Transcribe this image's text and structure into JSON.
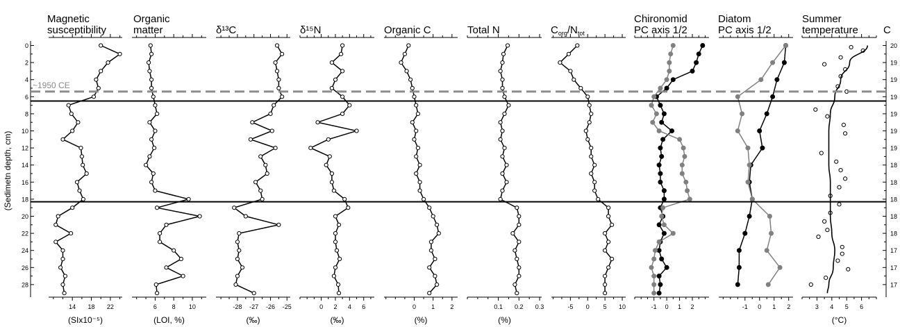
{
  "chart_data": {
    "type": "line",
    "y_axis": {
      "label": "(Sedimetn depth, cm)",
      "ylim": [
        0,
        29.5
      ],
      "ticks": [
        0,
        2,
        4,
        6,
        8,
        10,
        12,
        14,
        16,
        18,
        20,
        22,
        24,
        26,
        28
      ],
      "reversed": true
    },
    "right_axis": {
      "title": "C",
      "labels": [
        "20",
        "19",
        "19",
        "19",
        "19",
        "19",
        "19",
        "18",
        "18",
        "18",
        "18",
        "18",
        "17",
        "17",
        "17"
      ]
    },
    "reference_lines": [
      {
        "depth": 5.4,
        "label": "~1950 CE",
        "style": "dashed",
        "color": "#8c8c8c"
      },
      {
        "depth": 6.5,
        "label": "",
        "style": "solid",
        "color": "#000000"
      },
      {
        "depth": 18.3,
        "label": "",
        "style": "solid",
        "color": "#000000"
      }
    ],
    "panels": [
      {
        "title": [
          "Magnetic",
          "susceptibility"
        ],
        "unit": "(SIx10⁻⁵)",
        "xlim": [
          9,
          24.5
        ],
        "ticks": [
          14,
          18,
          22
        ],
        "tick_labels": [
          "14",
          "18",
          "22"
        ],
        "series": [
          {
            "style": "line-open",
            "color": "#000000",
            "depth": [
              0,
              1,
              2,
              3,
              4,
              5,
              6,
              7,
              8,
              9,
              10,
              11,
              12,
              13,
              14,
              15,
              16,
              17,
              18,
              19,
              20,
              21,
              22,
              23,
              24,
              25,
              26,
              27,
              28,
              29
            ],
            "values": [
              20,
              24,
              21.5,
              20,
              19,
              19.5,
              18.5,
              13.2,
              13.8,
              15.2,
              14,
              12,
              15.8,
              16,
              16.2,
              17,
              15,
              15.5,
              16.3,
              14,
              11,
              10.5,
              13.7,
              10.5,
              12,
              12,
              11.5,
              12.5,
              12,
              12.3
            ]
          }
        ]
      },
      {
        "title": [
          "Organic",
          "matter"
        ],
        "unit": "(LOI, %)",
        "xlim": [
          3.5,
          11.5
        ],
        "ticks": [
          6,
          8,
          10
        ],
        "tick_labels": [
          "6",
          "8",
          "10"
        ],
        "series": [
          {
            "style": "line-open",
            "color": "#000000",
            "depth": [
              0,
              1,
              2,
              3,
              4,
              5,
              6,
              7,
              8,
              9,
              10,
              11,
              12,
              13,
              14,
              15,
              16,
              17,
              18,
              19,
              20,
              21,
              22,
              23,
              24,
              25,
              26,
              27,
              28,
              29
            ],
            "values": [
              5.5,
              5.6,
              5.3,
              5.4,
              5.6,
              5.6,
              5.8,
              6,
              6.2,
              5.4,
              6,
              5.6,
              5.9,
              5.4,
              5,
              5.8,
              5.6,
              6,
              9.6,
              6.2,
              10.8,
              7.2,
              6.5,
              6.5,
              8,
              8.8,
              7.2,
              9,
              6.1,
              6.2
            ]
          }
        ]
      },
      {
        "title": [
          "δ¹³C",
          ""
        ],
        "unit": "(‰)",
        "xlim": [
          -29.3,
          -24.8
        ],
        "ticks": [
          -28,
          -27,
          -26,
          -25
        ],
        "tick_labels": [
          "-28",
          "-27",
          "-26",
          "-25"
        ],
        "series": [
          {
            "style": "line-open",
            "color": "#000000",
            "depth": [
              0,
              1,
              2,
              3,
              4,
              5,
              6,
              7,
              8,
              9,
              10,
              11,
              12,
              13,
              14,
              15,
              16,
              17,
              18,
              19,
              20,
              21,
              22,
              23,
              24,
              25,
              26,
              27,
              28,
              29
            ],
            "values": [
              -25.6,
              -25.3,
              -25.7,
              -25.6,
              -25.5,
              -25.5,
              -25.3,
              -25.8,
              -26.0,
              -27.1,
              -25.9,
              -27.2,
              -25.7,
              -26.6,
              -26.3,
              -26.2,
              -26.9,
              -26.6,
              -26.5,
              -28.2,
              -27.5,
              -25.5,
              -27.9,
              -28.0,
              -27.9,
              -28.0,
              -27.7,
              -28.0,
              -28.1,
              -27.0
            ]
          }
        ]
      },
      {
        "title": [
          "δ¹⁵N",
          ""
        ],
        "unit": "(‰)",
        "xlim": [
          -3,
          7.5
        ],
        "ticks": [
          0,
          2,
          4,
          6
        ],
        "tick_labels": [
          "0",
          "2",
          "4",
          "6"
        ],
        "series": [
          {
            "style": "line-open",
            "color": "#000000",
            "depth": [
              0,
              1,
              2,
              3,
              4,
              5,
              6,
              7,
              8,
              9,
              10,
              11,
              12,
              13,
              14,
              15,
              16,
              17,
              18,
              19,
              20,
              21,
              22,
              23,
              24,
              25,
              26,
              27,
              28,
              29
            ],
            "values": [
              3,
              2.8,
              1.5,
              3,
              2,
              1.5,
              3,
              4,
              3,
              -0.5,
              5,
              1,
              -1.5,
              1.2,
              0.7,
              1.5,
              1.5,
              1.8,
              3.3,
              3.8,
              2,
              2.5,
              2,
              2,
              2.2,
              2.6,
              2,
              1.8,
              2.4,
              2.5
            ]
          }
        ]
      },
      {
        "title": [
          "Organic C",
          ""
        ],
        "unit": "(%)",
        "xlim": [
          -1.6,
          2.3
        ],
        "ticks": [
          0,
          1,
          2
        ],
        "tick_labels": [
          "0",
          "1",
          "2"
        ],
        "series": [
          {
            "style": "line-open",
            "color": "#000000",
            "depth": [
              0,
              1,
              2,
              3,
              4,
              5,
              6,
              7,
              8,
              9,
              10,
              11,
              12,
              13,
              14,
              15,
              16,
              17,
              18,
              19,
              20,
              21,
              22,
              23,
              24,
              25,
              26,
              27,
              28,
              29
            ],
            "values": [
              -0.3,
              -0.5,
              -0.7,
              -0.4,
              -0.2,
              -0.1,
              0,
              0.1,
              0.2,
              -0.1,
              0.1,
              0.0,
              0.2,
              0.1,
              0.3,
              0.1,
              0.3,
              0.3,
              0.5,
              0.8,
              1.0,
              1.2,
              1.3,
              0.9,
              0.9,
              1.1,
              0.8,
              1.1,
              1.2,
              0.8
            ]
          }
        ]
      },
      {
        "title": [
          "Total N",
          ""
        ],
        "unit": "(%)",
        "xlim": [
          -0.05,
          0.31
        ],
        "ticks": [
          0.1,
          0.2,
          0.3
        ],
        "tick_labels": [
          "0.1",
          "0.2",
          "0.3"
        ],
        "series": [
          {
            "style": "line-open",
            "color": "#000000",
            "depth": [
              0,
              1,
              2,
              3,
              4,
              5,
              6,
              7,
              8,
              9,
              10,
              11,
              12,
              13,
              14,
              15,
              16,
              17,
              18,
              19,
              20,
              21,
              22,
              23,
              24,
              25,
              26,
              27,
              28,
              29
            ],
            "values": [
              0.145,
              0.125,
              0.12,
              0.11,
              0.12,
              0.12,
              0.13,
              0.15,
              0.13,
              0.11,
              0.12,
              0.11,
              0.13,
              0.12,
              0.14,
              0.12,
              0.14,
              0.12,
              0.11,
              0.19,
              0.2,
              0.2,
              0.17,
              0.2,
              0.18,
              0.19,
              0.2,
              0.2,
              0.18,
              0.19
            ]
          }
        ]
      },
      {
        "title": [
          "C",
          ""
        ],
        "title_html": "C<tspan font-size='9' dy='3'>org</tspan><tspan dy='-3'>/N</tspan><tspan font-size='9' dy='3'>tot</tspan>",
        "unit": "",
        "xlim": [
          -10.5,
          11
        ],
        "ticks": [
          -5,
          0,
          5,
          10
        ],
        "tick_labels": [
          "-5",
          "0",
          "5",
          "10"
        ],
        "series": [
          {
            "style": "line-open",
            "color": "#000000",
            "depth": [
              0,
              1,
              2,
              3,
              4,
              5,
              6,
              7,
              8,
              9,
              10,
              11,
              12,
              13,
              14,
              15,
              16,
              17,
              18,
              19,
              20,
              21,
              22,
              23,
              24,
              25,
              26,
              27,
              28,
              29
            ],
            "values": [
              -3,
              -5.5,
              -8,
              -5,
              -4,
              -2,
              0,
              0.5,
              1,
              0.5,
              -0.5,
              0,
              1,
              1,
              2,
              1,
              2,
              2,
              3,
              6,
              6,
              7,
              5,
              6,
              5,
              7,
              6,
              5,
              5,
              5
            ]
          }
        ]
      },
      {
        "title": [
          "Chironomid",
          "PC axis 1/2"
        ],
        "unit": "",
        "xlim": [
          -2.5,
          3.3
        ],
        "ticks": [
          -1,
          0,
          1,
          2
        ],
        "tick_labels": [
          "-1",
          "0",
          "1",
          "2"
        ],
        "series": [
          {
            "style": "line-filled",
            "color": "#000000",
            "depth": [
              0,
              1,
              2,
              3,
              4,
              5,
              6,
              7,
              8,
              9,
              10,
              11,
              12,
              13,
              14,
              15,
              16,
              17,
              18,
              19,
              20,
              21,
              22,
              23,
              24,
              25,
              26,
              27,
              28,
              29
            ],
            "values": [
              2.8,
              2.5,
              2.3,
              2,
              0.5,
              0,
              -0.8,
              -0.5,
              -0.2,
              -0.4,
              0.4,
              -0.3,
              -0.5,
              -0.4,
              -0.6,
              -0.5,
              -0.5,
              -0.2,
              -0.2,
              -0.5,
              -0.3,
              -0.6,
              -0.2,
              -0.5,
              -0.6,
              -0.4,
              0,
              -0.6,
              -0.5,
              -0.6
            ]
          },
          {
            "style": "line-filled",
            "color": "#808080",
            "depth": [
              0,
              1,
              2,
              3,
              4,
              5,
              6,
              7,
              8,
              9,
              10,
              11,
              12,
              13,
              14,
              15,
              16,
              17,
              18,
              19,
              20,
              21,
              22,
              23,
              24,
              25,
              26,
              27,
              28,
              29
            ],
            "values": [
              0.5,
              0.3,
              0.2,
              0.2,
              0,
              -0.5,
              -1,
              -1.2,
              -0.8,
              -1.1,
              -0.6,
              1,
              1.3,
              1.4,
              1.2,
              1.2,
              1.5,
              1.6,
              1.8,
              -0.3,
              -0.4,
              -0.2,
              0.5,
              -0.6,
              -0.9,
              -1,
              -1.2,
              -1,
              -1,
              -1
            ]
          }
        ]
      },
      {
        "title": [
          "Diatom",
          "PC axis 1/2"
        ],
        "unit": "",
        "xlim": [
          -2.8,
          2.3
        ],
        "ticks": [
          -1,
          0,
          1,
          2
        ],
        "tick_labels": [
          "-1",
          "0",
          "1",
          "2"
        ],
        "series": [
          {
            "style": "line-filled",
            "color": "#000000",
            "depth": [
              0,
              2,
              4,
              6,
              8,
              10,
              12,
              14,
              16,
              18,
              20,
              22,
              24,
              26,
              28
            ],
            "values": [
              1.8,
              1.7,
              1.2,
              0.9,
              0.5,
              0,
              0.2,
              -0.6,
              -0.7,
              -0.5,
              -0.7,
              -1,
              -1.4,
              -1.4,
              -1.5
            ]
          },
          {
            "style": "line-filled",
            "color": "#808080",
            "depth": [
              0,
              2,
              4,
              6,
              8,
              10,
              12,
              14,
              16,
              18,
              20,
              22,
              24,
              26,
              28
            ],
            "values": [
              1.8,
              0.9,
              0.1,
              -1.5,
              -1.2,
              -1.5,
              -0.8,
              -0.7,
              -0.8,
              -0.5,
              0.7,
              0.8,
              0.5,
              1.4,
              0.6
            ]
          }
        ]
      },
      {
        "title": [
          "Summer",
          "temperature"
        ],
        "unit": "(°C)",
        "xlim": [
          2,
          7
        ],
        "ticks": [
          3,
          4,
          5,
          6
        ],
        "tick_labels": [
          "3",
          "4",
          "5",
          "6"
        ],
        "series": [
          {
            "style": "scatter-open",
            "color": "#000000",
            "depth": [
              0.2,
              0.6,
              1.4,
              2.2,
              2.8,
              3.6,
              4.8,
              5.4,
              7.5,
              8.3,
              9.3,
              10.3,
              12.6,
              13.6,
              14.6,
              15.6,
              16.6,
              17.6,
              18.6,
              19.6,
              20.6,
              21.6,
              22.4,
              23.6,
              24.4,
              25.2,
              26.2,
              27.2,
              28
            ],
            "values": [
              5.3,
              6.1,
              4.6,
              3.5,
              4.9,
              4.6,
              4.4,
              5,
              2.9,
              3.7,
              4.8,
              4.9,
              3.3,
              4.3,
              4.6,
              4.9,
              4.5,
              3.9,
              4.5,
              3.9,
              3.5,
              3.7,
              3.1,
              4.7,
              4.7,
              4.4,
              5.1,
              3.6,
              2.6
            ]
          },
          {
            "style": "curve",
            "color": "#000000",
            "depth": [
              0,
              2,
              4,
              6,
              8,
              10,
              12,
              14,
              16,
              18,
              20,
              22,
              24,
              26,
              28,
              29
            ],
            "values": [
              6.4,
              5.2,
              4.6,
              4.2,
              3.9,
              3.8,
              3.8,
              3.8,
              3.9,
              3.9,
              3.9,
              4.0,
              4.2,
              4.1,
              3.8,
              3.7
            ]
          }
        ]
      }
    ]
  }
}
